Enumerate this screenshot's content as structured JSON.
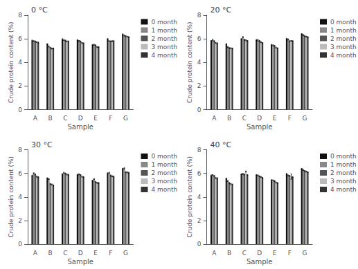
{
  "chart_data": [
    {
      "type": "bar",
      "title": "0 °C",
      "xlabel": "Sample",
      "ylabel": "Crude protein content (%)",
      "categories": [
        "A",
        "B",
        "C",
        "D",
        "E",
        "F",
        "G"
      ],
      "series": [
        {
          "name": "0 month",
          "color": "#111111",
          "values": [
            5.85,
            5.55,
            5.95,
            5.88,
            5.48,
            5.98,
            6.38
          ],
          "errors": [
            0.04,
            0.04,
            0.06,
            0.04,
            0.04,
            0.04,
            0.04
          ]
        },
        {
          "name": "1 month",
          "color": "#888888",
          "values": [
            5.8,
            5.35,
            5.9,
            5.82,
            5.5,
            5.8,
            6.28
          ],
          "errors": [
            0.04,
            0.04,
            0.04,
            0.04,
            0.04,
            0.04,
            0.04
          ]
        },
        {
          "name": "2 month",
          "color": "#555555",
          "values": [
            5.78,
            5.25,
            5.85,
            5.78,
            5.45,
            5.78,
            6.22
          ],
          "errors": [
            0.04,
            0.04,
            0.04,
            0.04,
            0.04,
            0.04,
            0.04
          ]
        },
        {
          "name": "3 month",
          "color": "#bbbbbb",
          "values": [
            5.72,
            5.18,
            5.78,
            5.65,
            5.3,
            5.8,
            6.18
          ],
          "errors": [
            0.04,
            0.04,
            0.04,
            0.04,
            0.04,
            0.04,
            0.04
          ]
        },
        {
          "name": "4 month",
          "color": "#333333",
          "values": [
            5.68,
            5.18,
            5.78,
            5.62,
            5.3,
            5.8,
            6.15
          ],
          "errors": [
            0.04,
            0.04,
            0.04,
            0.04,
            0.04,
            0.04,
            0.04
          ]
        }
      ],
      "ylim": [
        0,
        8
      ],
      "yticks": [
        0,
        2,
        4,
        6,
        8
      ],
      "legend": "upper right",
      "grid": false
    },
    {
      "type": "bar",
      "title": "20 °C",
      "xlabel": "Sample",
      "ylabel": "Crude protein content (%)",
      "categories": [
        "A",
        "B",
        "C",
        "D",
        "E",
        "F",
        "G"
      ],
      "series": [
        {
          "name": "0 month",
          "color": "#111111",
          "values": [
            5.82,
            5.55,
            5.98,
            5.9,
            5.48,
            6.0,
            6.4
          ],
          "errors": [
            0.04,
            0.04,
            0.04,
            0.04,
            0.04,
            0.04,
            0.04
          ]
        },
        {
          "name": "1 month",
          "color": "#888888",
          "values": [
            5.9,
            5.3,
            6.15,
            5.88,
            5.45,
            5.95,
            6.32
          ],
          "errors": [
            0.07,
            0.04,
            0.04,
            0.07,
            0.04,
            0.04,
            0.04
          ]
        },
        {
          "name": "2 month",
          "color": "#555555",
          "values": [
            5.8,
            5.22,
            5.92,
            5.82,
            5.4,
            5.8,
            6.25
          ],
          "errors": [
            0.04,
            0.04,
            0.04,
            0.04,
            0.04,
            0.04,
            0.04
          ]
        },
        {
          "name": "3 month",
          "color": "#bbbbbb",
          "values": [
            5.65,
            5.2,
            5.88,
            5.72,
            5.25,
            5.82,
            6.18
          ],
          "errors": [
            0.04,
            0.04,
            0.04,
            0.04,
            0.04,
            0.04,
            0.04
          ]
        },
        {
          "name": "4 month",
          "color": "#333333",
          "values": [
            5.62,
            5.18,
            5.82,
            5.65,
            5.2,
            5.8,
            6.15
          ],
          "errors": [
            0.04,
            0.04,
            0.04,
            0.04,
            0.04,
            0.04,
            0.04
          ]
        }
      ],
      "ylim": [
        0,
        8
      ],
      "yticks": [
        0,
        2,
        4,
        6,
        8
      ],
      "legend": "upper right",
      "grid": false
    },
    {
      "type": "bar",
      "title": "30 °C",
      "xlabel": "Sample",
      "ylabel": "Crude protein content (%)",
      "categories": [
        "A",
        "B",
        "C",
        "D",
        "E",
        "F",
        "G"
      ],
      "series": [
        {
          "name": "0 month",
          "color": "#111111",
          "values": [
            5.8,
            5.58,
            5.92,
            5.88,
            5.38,
            6.0,
            6.38
          ],
          "errors": [
            0.04,
            0.04,
            0.04,
            0.04,
            0.04,
            0.04,
            0.04
          ]
        },
        {
          "name": "1 month",
          "color": "#888888",
          "values": [
            6.0,
            5.52,
            6.05,
            5.92,
            5.52,
            6.05,
            6.42
          ],
          "errors": [
            0.04,
            0.04,
            0.04,
            0.04,
            0.04,
            0.04,
            0.04
          ]
        },
        {
          "name": "2 month",
          "color": "#555555",
          "values": [
            5.9,
            5.1,
            5.98,
            5.85,
            5.28,
            5.82,
            6.1
          ],
          "errors": [
            0.04,
            0.04,
            0.04,
            0.04,
            0.04,
            0.04,
            0.04
          ]
        },
        {
          "name": "3 month",
          "color": "#bbbbbb",
          "values": [
            5.72,
            5.05,
            5.9,
            5.72,
            5.2,
            5.75,
            6.08
          ],
          "errors": [
            0.04,
            0.04,
            0.04,
            0.04,
            0.04,
            0.04,
            0.04
          ]
        },
        {
          "name": "4 month",
          "color": "#333333",
          "values": [
            5.68,
            4.98,
            5.88,
            5.68,
            5.18,
            5.72,
            6.05
          ],
          "errors": [
            0.04,
            0.04,
            0.04,
            0.04,
            0.04,
            0.04,
            0.04
          ]
        }
      ],
      "ylim": [
        0,
        8
      ],
      "yticks": [
        0,
        2,
        4,
        6,
        8
      ],
      "legend": "upper right",
      "grid": false
    },
    {
      "type": "bar",
      "title": "40 °C",
      "xlabel": "Sample",
      "ylabel": "Crude protein content (%)",
      "categories": [
        "A",
        "B",
        "C",
        "D",
        "E",
        "F",
        "G"
      ],
      "series": [
        {
          "name": "0 month",
          "color": "#111111",
          "values": [
            5.82,
            5.55,
            5.92,
            5.85,
            5.42,
            5.95,
            6.38
          ],
          "errors": [
            0.04,
            0.04,
            0.04,
            0.04,
            0.04,
            0.04,
            0.04
          ]
        },
        {
          "name": "1 month",
          "color": "#888888",
          "values": [
            5.85,
            5.35,
            5.95,
            5.82,
            5.4,
            5.82,
            6.28
          ],
          "errors": [
            0.04,
            0.04,
            0.04,
            0.04,
            0.04,
            0.04,
            0.04
          ]
        },
        {
          "name": "2 month",
          "color": "#555555",
          "values": [
            5.78,
            5.18,
            5.9,
            5.75,
            5.35,
            5.78,
            6.2
          ],
          "errors": [
            0.04,
            0.04,
            0.04,
            0.04,
            0.04,
            0.04,
            0.04
          ]
        },
        {
          "name": "3 month",
          "color": "#bbbbbb",
          "values": [
            5.6,
            5.1,
            6.15,
            5.68,
            5.22,
            5.72,
            6.15
          ],
          "errors": [
            0.04,
            0.04,
            0.04,
            0.04,
            0.04,
            0.22,
            0.04
          ]
        },
        {
          "name": "4 month",
          "color": "#333333",
          "values": [
            5.58,
            5.05,
            5.85,
            5.62,
            5.18,
            5.68,
            6.1
          ],
          "errors": [
            0.04,
            0.04,
            0.04,
            0.04,
            0.04,
            0.04,
            0.04
          ]
        }
      ],
      "ylim": [
        0,
        8
      ],
      "yticks": [
        0,
        2,
        4,
        6,
        8
      ],
      "legend": "upper right",
      "grid": false
    }
  ]
}
